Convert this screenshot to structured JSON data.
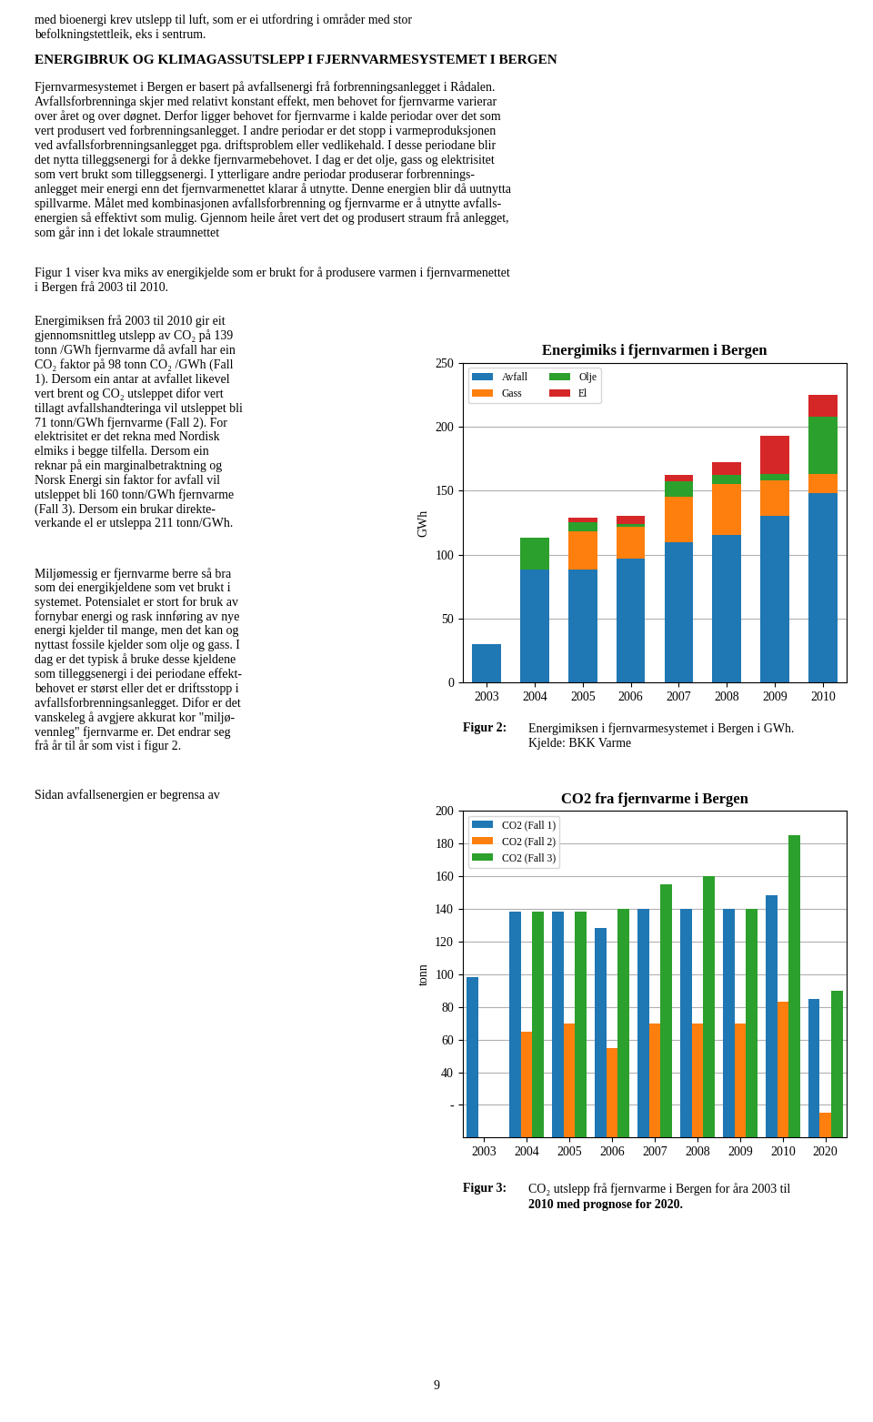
{
  "chart_data": [
    {
      "type": "bar",
      "title": "Energimiks i fjernvarmen i Bergen",
      "y_label": "GWh",
      "categories": [
        "2003",
        "2004",
        "2005",
        "2006",
        "2007",
        "2008",
        "2009",
        "2010"
      ],
      "series": [
        {
          "name": "Avfall",
          "values": [
            30,
            88,
            88,
            97,
            110,
            115,
            130,
            148
          ]
        },
        {
          "name": "Gass",
          "values": [
            0,
            0,
            30,
            25,
            35,
            40,
            28,
            15
          ]
        },
        {
          "name": "Olje",
          "values": [
            0,
            25,
            7,
            2,
            12,
            7,
            5,
            45
          ]
        },
        {
          "name": "El",
          "values": [
            0,
            0,
            4,
            6,
            5,
            10,
            30,
            17
          ]
        }
      ],
      "stacked": true,
      "ylim": [
        0,
        250
      ],
      "yticks": [
        0,
        50,
        100,
        150,
        200,
        250
      ],
      "grid": true,
      "legend": "upper left",
      "annotations": [
        "med bioenergi krev utslepp til luft, som er ei utfordring i områder med stor\nbefolkningstettleik, eks i sentrum.",
        "ENERGIBRUK OG KLIMAGASSUTSLEPP I FJERNVARMESYSTEMET I BERGEN",
        "Fjernvarmesystemet i Bergen er basert på avfallsenergi frå forbrenningsanlegget i Rådalen.\nAvfallsforbrenninga skjer med relativt konstant effekt, men behovet for fjernvarme varierar\nover året og over døgnet. Derfor ligger behovet for fjernvarme i kalde periodar over det som\nvert produsert ved forbrenningsanlegget. I andre periodar er det stopp i varmeproduksjonen\nved avfallsforbrenningsanlegget pga. driftsproblem eller vedlikehald. I desse periodane blir\ndet nytta tilleggsenergi for å dekke fjernvarmebehovet. I dag er det olje, gass og elektrisitet\nsom vert brukt som tilleggsenergi. I ytterligare andre periodar produserar forbrennings-\nanlegget meir energi enn det fjernvarmenettet klarar å utnytte. Denne energien blir då uutnytta\nspillvarme. Målet med kombinasjonen avfallsforbrenning og fjernvarme er å utnytte avfalls-\nenergien så effektivt som mulig. Gjennom heile året vert det og produsert straum frå anlegget,\nsom går inn i det lokale straumnettet",
        "Figur 1 viser kva miks av energikjelde som er brukt for å produsere varmen i fjernvarmenettet\ni Bergen frå 2003 til 2010.",
        "Energimiksen frå 2003 til 2010 gir eit\ngjennomsnittleg utslepp av CO₂ på 139\ntonn /GWh fjernvarme då avfall har ein\nCO₂ faktor på 98 tonn CO₂ /GWh (Fall\n1). Dersom ein antar at avfallet likevel\nvert brent og CO₂ utsleppet difor vert\ntillagt avfallshandteringa vil utsleppet bli\n71 tonn/GWh fjernvarme (Fall 2). For\nelektrisitet er det rekna med Nordisk\nelmiks i begge tilfella. Dersom ein\nreknar på ein marginalbetraktning og\nNorsk Energi sin faktor for avfall vil\nutsleppet bli 160 tonn/GWh fjernvarme\n(Fall 3). Dersom ein brukar direkte-\nverkande el er utsleppa 211 tonn/GWh.",
        "Miljømessig er fjernvarme berre så bra\nsom dei energikjeldene som vet brukt i\nsystemet. Potensialet er stort for bruk av\nfornybar energi og rask innføring av nye\nenergi kjelder til mange, men det kan og\nnyttast fossile kjelder som olje og gass. I\ndag er det typisk å bruke desse kjeldene\nsom tilleggsenergi i dei periodane effekt-\nbehovet er størst eller det er driftsstopp i\navfallsforbrenningsanlegget. Difor er det\nvanskeleg å avgjere akkurat kor \"miljø-\nvennleg\" fjernvarme er. Det endrar seg\nfrå år til år som vist i figur 2.",
        "Sidan avfallsenergien er begrensa av",
        "Figur 2:",
        "Energimiksen i fjernvarmesystemet i Bergen i GWh.",
        "Kjelde: BKK Varme"
      ]
    },
    {
      "type": "bar",
      "title": "CO2 fra fjernvarme i Bergen",
      "y_label": "tonn",
      "categories": [
        "2003",
        "2004",
        "2005",
        "2006",
        "2007",
        "2008",
        "2009",
        "2010",
        "2020"
      ],
      "series": [
        {
          "name": "CO2 (Fall 1)",
          "values": [
            98,
            138,
            138,
            128,
            140,
            140,
            140,
            148,
            85
          ]
        },
        {
          "name": "CO2 (Fall 2)",
          "values": [
            0,
            65,
            70,
            55,
            70,
            70,
            70,
            83,
            15
          ]
        },
        {
          "name": "CO2 (Fall 3)",
          "values": [
            0,
            138,
            138,
            140,
            155,
            160,
            140,
            185,
            90
          ]
        }
      ],
      "stacked": false,
      "ylim": [
        0,
        200
      ],
      "yticks": [
        {
          "value": 20,
          "label": "-"
        },
        40,
        60,
        80,
        100,
        120,
        140,
        160,
        180,
        200
      ],
      "grid": true,
      "legend": "upper left",
      "annotations": [
        "Figur 3:",
        "CO₂ utslepp frå fjernvarme i Bergen for åra 2003 til",
        "2010 med prognose for 2020.",
        "9"
      ]
    }
  ]
}
